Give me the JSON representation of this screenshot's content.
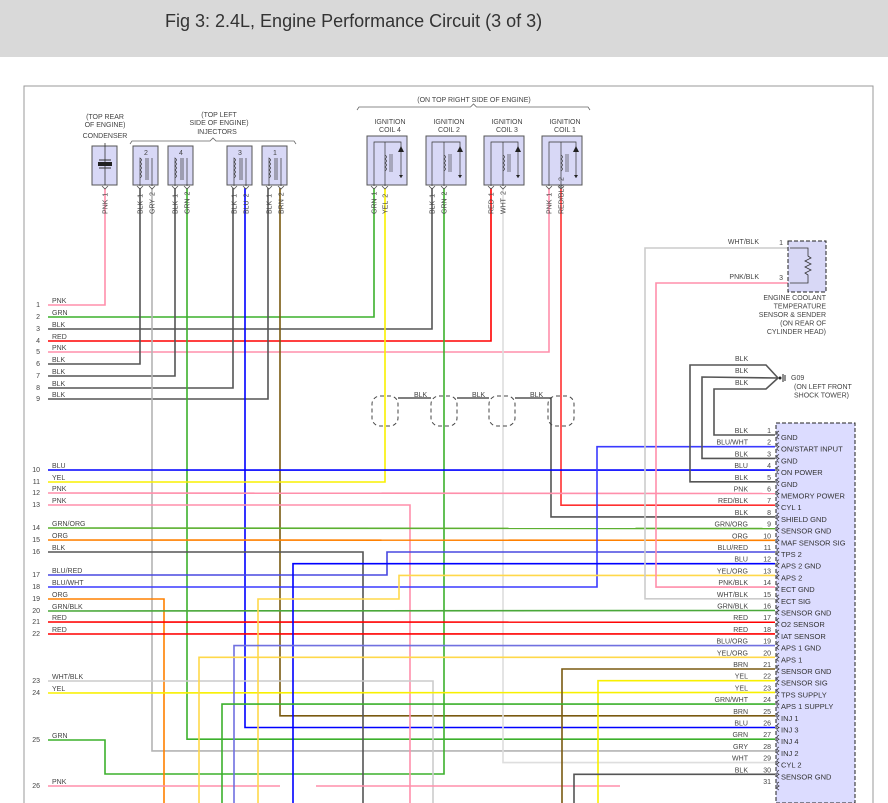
{
  "header": {
    "title": "Fig 3: 2.4L, Engine Performance Circuit (3 of 3)"
  },
  "wire_colors": {
    "PNK": "#ff8fab",
    "GRN": "#3cb02c",
    "BLK": "#555555",
    "RED": "#ff0000",
    "YEL": "#f8f000",
    "BLU": "#0000ff",
    "ORG": "#ff8000",
    "BRN": "#7a5a10",
    "GRY": "#b4b4b4",
    "WHT": "#dedede",
    "GRN/ORG": "#5cb030",
    "BLU/RED": "#4848e0",
    "BLU/WHT": "#3a3aff",
    "GRN/BLK": "#4aa83a",
    "WHT/BLK": "#cccccc",
    "YEL/ORG": "#ffd84a",
    "PNK/BLK": "#ff8fab",
    "RED/BLK": "#ff3030",
    "BLU/ORG": "#7070e0",
    "GRN/WHT": "#3cb02c"
  },
  "condenser": {
    "location": [
      "(TOP REAR",
      "OF ENGINE)"
    ],
    "name": "CONDENSER",
    "pins": [
      {
        "color": "PNK",
        "num": "1"
      }
    ]
  },
  "injectors": {
    "location": [
      "(TOP LEFT",
      "SIDE OF ENGINE)"
    ],
    "name": "INJECTORS",
    "items": [
      {
        "num": "2",
        "pins": [
          {
            "color": "BLK",
            "num": "1"
          },
          {
            "color": "GRY",
            "num": "2"
          }
        ]
      },
      {
        "num": "4",
        "pins": [
          {
            "color": "BLK",
            "num": "1"
          },
          {
            "color": "GRN",
            "num": "2"
          }
        ]
      },
      {
        "num": "3",
        "pins": [
          {
            "color": "BLK",
            "num": "1"
          },
          {
            "color": "BLU",
            "num": "2"
          }
        ]
      },
      {
        "num": "1",
        "pins": [
          {
            "color": "BLK",
            "num": "1"
          },
          {
            "color": "BRN",
            "num": "2"
          }
        ]
      }
    ]
  },
  "coils": {
    "location": "(ON TOP RIGHT SIDE OF ENGINE)",
    "items": [
      {
        "name": [
          "IGNITION",
          "COIL 4"
        ],
        "pins": [
          {
            "color": "GRN",
            "num": "1"
          },
          {
            "color": "YEL",
            "num": "2"
          }
        ]
      },
      {
        "name": [
          "IGNITION",
          "COIL 2"
        ],
        "pins": [
          {
            "color": "BLK",
            "num": "1"
          },
          {
            "color": "GRN",
            "num": "2"
          }
        ]
      },
      {
        "name": [
          "IGNITION",
          "COIL 3"
        ],
        "pins": [
          {
            "color": "RED",
            "num": "1"
          },
          {
            "color": "WHT",
            "num": "2"
          }
        ]
      },
      {
        "name": [
          "IGNITION",
          "COIL 1"
        ],
        "pins": [
          {
            "color": "PNK",
            "num": "1"
          },
          {
            "color": "RED/BLK",
            "num": "2"
          }
        ]
      }
    ]
  },
  "shield_labels": [
    "BLK",
    "BLK",
    "BLK"
  ],
  "ect_sensor": {
    "name": [
      "ENGINE COOLANT",
      "TEMPERATURE",
      "SENSOR & SENDER",
      "(ON REAR OF",
      "CYLINDER HEAD)"
    ],
    "pins": [
      {
        "num": "1",
        "color": "WHT/BLK"
      },
      {
        "num": "3",
        "color": "PNK/BLK"
      }
    ]
  },
  "ground": {
    "id": "G09",
    "location": [
      "(ON LEFT FRONT",
      "SHOCK TOWER)"
    ],
    "wire_labels": [
      "BLK",
      "BLK",
      "BLK"
    ]
  },
  "left_connector": {
    "wires": [
      {
        "num": "1",
        "color": "PNK"
      },
      {
        "num": "2",
        "color": "GRN"
      },
      {
        "num": "3",
        "color": "BLK"
      },
      {
        "num": "4",
        "color": "RED"
      },
      {
        "num": "5",
        "color": "PNK"
      },
      {
        "num": "6",
        "color": "BLK"
      },
      {
        "num": "7",
        "color": "BLK"
      },
      {
        "num": "8",
        "color": "BLK"
      },
      {
        "num": "9",
        "color": "BLK"
      },
      {
        "num": "10",
        "color": "BLU"
      },
      {
        "num": "11",
        "color": "YEL"
      },
      {
        "num": "12",
        "color": "PNK"
      },
      {
        "num": "13",
        "color": "PNK"
      },
      {
        "num": "14",
        "color": "GRN/ORG"
      },
      {
        "num": "15",
        "color": "ORG"
      },
      {
        "num": "16",
        "color": "BLK"
      },
      {
        "num": "17",
        "color": "BLU/RED"
      },
      {
        "num": "18",
        "color": "BLU/WHT"
      },
      {
        "num": "19",
        "color": "ORG"
      },
      {
        "num": "20",
        "color": "GRN/BLK"
      },
      {
        "num": "21",
        "color": "RED"
      },
      {
        "num": "22",
        "color": "RED"
      },
      {
        "num": "23",
        "color": "WHT/BLK"
      },
      {
        "num": "24",
        "color": "YEL"
      },
      {
        "num": "25",
        "color": "GRN"
      },
      {
        "num": "26",
        "color": "PNK"
      }
    ]
  },
  "pcm": {
    "pins": [
      {
        "num": "1",
        "wire": "BLK",
        "func": "GND"
      },
      {
        "num": "2",
        "wire": "BLU/WHT",
        "func": "ON/START INPUT"
      },
      {
        "num": "3",
        "wire": "BLK",
        "func": "GND"
      },
      {
        "num": "4",
        "wire": "BLU",
        "func": "ON POWER"
      },
      {
        "num": "5",
        "wire": "BLK",
        "func": "GND"
      },
      {
        "num": "6",
        "wire": "PNK",
        "func": "MEMORY POWER"
      },
      {
        "num": "7",
        "wire": "RED/BLK",
        "func": "CYL 1"
      },
      {
        "num": "8",
        "wire": "BLK",
        "func": "SHIELD GND"
      },
      {
        "num": "9",
        "wire": "GRN/ORG",
        "func": "SENSOR GND"
      },
      {
        "num": "10",
        "wire": "ORG",
        "func": "MAF SENSOR SIG"
      },
      {
        "num": "11",
        "wire": "BLU/RED",
        "func": "TPS 2"
      },
      {
        "num": "12",
        "wire": "BLU",
        "func": "APS 2 GND"
      },
      {
        "num": "13",
        "wire": "YEL/ORG",
        "func": "APS 2"
      },
      {
        "num": "14",
        "wire": "PNK/BLK",
        "func": "ECT GND"
      },
      {
        "num": "15",
        "wire": "WHT/BLK",
        "func": "ECT SIG"
      },
      {
        "num": "16",
        "wire": "GRN/BLK",
        "func": "SENSOR GND"
      },
      {
        "num": "17",
        "wire": "RED",
        "func": "O2 SENSOR"
      },
      {
        "num": "18",
        "wire": "RED",
        "func": "IAT SENSOR"
      },
      {
        "num": "19",
        "wire": "BLU/ORG",
        "func": "APS 1 GND"
      },
      {
        "num": "20",
        "wire": "YEL/ORG",
        "func": "APS 1"
      },
      {
        "num": "21",
        "wire": "BRN",
        "func": "SENSOR GND"
      },
      {
        "num": "22",
        "wire": "YEL",
        "func": "SENSOR SIG"
      },
      {
        "num": "23",
        "wire": "YEL",
        "func": "TPS SUPPLY"
      },
      {
        "num": "24",
        "wire": "GRN/WHT",
        "func": "APS 1 SUPPLY"
      },
      {
        "num": "25",
        "wire": "BRN",
        "func": "INJ 1"
      },
      {
        "num": "26",
        "wire": "BLU",
        "func": "INJ 3"
      },
      {
        "num": "27",
        "wire": "GRN",
        "func": "INJ 4"
      },
      {
        "num": "28",
        "wire": "GRY",
        "func": "INJ 2"
      },
      {
        "num": "29",
        "wire": "WHT",
        "func": "CYL 2"
      },
      {
        "num": "30",
        "wire": "BLK",
        "func": "SENSOR GND"
      },
      {
        "num": "31",
        "wire": "",
        "func": ""
      }
    ]
  }
}
